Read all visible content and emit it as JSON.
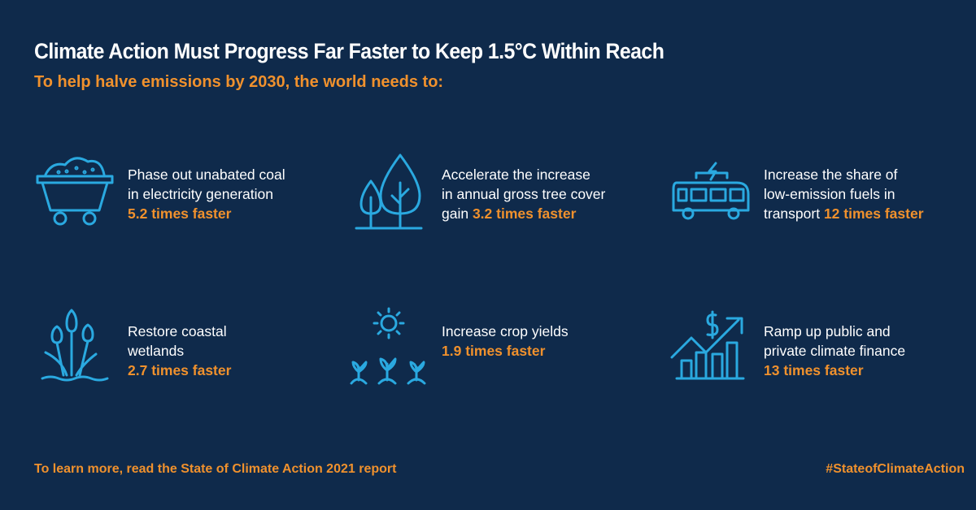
{
  "title": "Climate Action Must Progress Far Faster to Keep 1.5°C Within Reach",
  "subtitle": "To help halve emissions by 2030, the world needs to:",
  "items": [
    {
      "icon": "coal-cart-icon",
      "line1": "Phase out unabated coal",
      "line2": "in electricity generation",
      "prefix": "",
      "highlight": "5.2 times faster"
    },
    {
      "icon": "trees-icon",
      "line1": "Accelerate the increase",
      "line2": "in annual gross tree cover",
      "prefix": "gain ",
      "highlight": "3.2 times faster"
    },
    {
      "icon": "electric-bus-icon",
      "line1": "Increase the share of",
      "line2": "low-emission fuels in",
      "prefix": "transport ",
      "highlight": "12 times faster"
    },
    {
      "icon": "wetland-reeds-icon",
      "line1": "Restore coastal",
      "line2": "wetlands",
      "prefix": "",
      "highlight": "2.7 times faster"
    },
    {
      "icon": "crops-sun-icon",
      "line1": "Increase crop yields",
      "line2": "",
      "prefix": "",
      "highlight": "1.9 times faster"
    },
    {
      "icon": "finance-growth-icon",
      "line1": "Ramp up public and",
      "line2": "private climate finance",
      "prefix": "",
      "highlight": "13 times faster"
    }
  ],
  "footer": {
    "left": "To learn more, read the State of Climate Action 2021 report",
    "right": "#StateofClimateAction"
  },
  "colors": {
    "background": "#0f2a4b",
    "accent": "#f0912d",
    "icon": "#2aa9e0",
    "text": "#ffffff"
  }
}
